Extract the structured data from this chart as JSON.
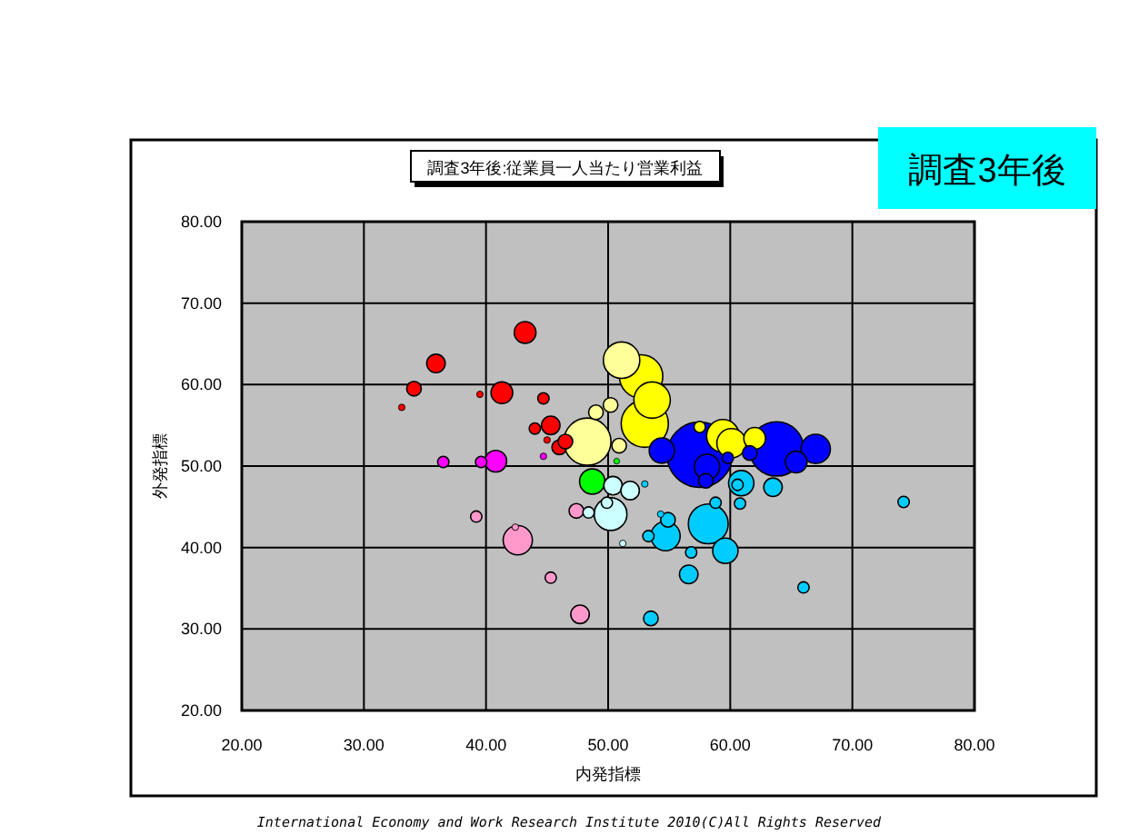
{
  "chart_data": {
    "type": "bubble",
    "title": "調査3年後:従業員一人当たり営業利益",
    "xlabel": "内発指標",
    "ylabel": "外発指標",
    "annotations": [
      "調査3年後",
      "International Economy and Work Research Institute 2010(C)All Rights Reserved"
    ],
    "xlim": [
      20,
      80
    ],
    "ylim": [
      20,
      80
    ],
    "xticks": [
      {
        "value": 20,
        "label": "20.00"
      },
      {
        "value": 30,
        "label": "30.00"
      },
      {
        "value": 40,
        "label": "40.00"
      },
      {
        "value": 50,
        "label": "50.00"
      },
      {
        "value": 60,
        "label": "60.00"
      },
      {
        "value": 70,
        "label": "70.00"
      },
      {
        "value": 80,
        "label": "80.00"
      }
    ],
    "yticks": [
      {
        "value": 20,
        "label": "20.00"
      },
      {
        "value": 30,
        "label": "30.00"
      },
      {
        "value": 40,
        "label": "40.00"
      },
      {
        "value": 50,
        "label": "50.00"
      },
      {
        "value": 60,
        "label": "60.00"
      },
      {
        "value": 70,
        "label": "70.00"
      },
      {
        "value": 80,
        "label": "80.00"
      }
    ],
    "grid": true,
    "series": [
      {
        "color": "#ff0000",
        "x": [
          43.2,
          35.9,
          34.1,
          33.1,
          41.3,
          44.7,
          45.3,
          44.0,
          46.0,
          46.5,
          45.0,
          39.5
        ],
        "values": [
          66.4,
          62.6,
          59.5,
          57.2,
          59.0,
          58.3,
          55.0,
          54.6,
          52.3,
          53.0,
          53.2,
          58.8
        ],
        "sizes": [
          0.11,
          0.08,
          0.05,
          0.01,
          0.11,
          0.03,
          0.08,
          0.03,
          0.05,
          0.05,
          0.01,
          0.01
        ]
      },
      {
        "color": "#ff00ff",
        "x": [
          40.8,
          36.5,
          39.6,
          44.7
        ],
        "values": [
          50.6,
          50.5,
          50.5,
          51.2
        ],
        "sizes": [
          0.11,
          0.03,
          0.03,
          0.01
        ]
      },
      {
        "color": "#ff99cc",
        "x": [
          39.2,
          42.6,
          42.4,
          45.3,
          47.7,
          47.4
        ],
        "values": [
          43.8,
          40.9,
          42.5,
          36.3,
          31.8,
          44.5
        ],
        "sizes": [
          0.03,
          0.2,
          0.01,
          0.03,
          0.08,
          0.05
        ]
      },
      {
        "color": "#00ff00",
        "x": [
          48.7,
          50.7
        ],
        "values": [
          48.1,
          50.6
        ],
        "sizes": [
          0.15,
          0.003
        ]
      },
      {
        "color": "#ffff99",
        "x": [
          51.1,
          48.3,
          50.2,
          50.9,
          49.0
        ],
        "values": [
          63.0,
          53.0,
          57.5,
          52.5,
          56.6
        ],
        "sizes": [
          0.31,
          0.52,
          0.05,
          0.05,
          0.05
        ]
      },
      {
        "color": "#ffff00",
        "x": [
          52.7,
          53.6,
          53.0,
          59.4,
          62.0,
          60.1,
          57.5
        ],
        "values": [
          61.0,
          58.1,
          55.2,
          53.7,
          53.4,
          52.8,
          54.8
        ],
        "sizes": [
          0.44,
          0.31,
          0.52,
          0.25,
          0.11,
          0.2,
          0.03
        ]
      },
      {
        "color": "#00ccff",
        "x": [
          58.2,
          59.6,
          54.7,
          53.3,
          54.9,
          54.3,
          56.6,
          56.8,
          58.8,
          60.6,
          53.0,
          53.5,
          60.9,
          63.5,
          60.8,
          74.2,
          66.0
        ],
        "values": [
          42.9,
          39.6,
          41.4,
          41.4,
          43.4,
          44.1,
          36.7,
          39.4,
          45.5,
          47.7,
          47.8,
          31.3,
          47.9,
          47.4,
          45.4,
          45.6,
          35.1
        ],
        "sizes": [
          0.37,
          0.15,
          0.2,
          0.03,
          0.05,
          0.01,
          0.08,
          0.03,
          0.03,
          0.03,
          0.01,
          0.05,
          0.15,
          0.08,
          0.03,
          0.03,
          0.03
        ]
      },
      {
        "color": "#ccffff",
        "x": [
          50.2,
          50.4,
          51.8,
          49.9,
          48.4,
          51.2
        ],
        "values": [
          44.1,
          47.6,
          47.0,
          45.5,
          44.3,
          40.5
        ],
        "sizes": [
          0.25,
          0.08,
          0.08,
          0.03,
          0.03,
          0.01
        ]
      },
      {
        "color": "#0000ff",
        "x": [
          57.5,
          54.4,
          58.1,
          58.0,
          59.8,
          63.8,
          67.0,
          65.4,
          61.6
        ],
        "values": [
          51.4,
          51.9,
          49.9,
          48.2,
          51.0,
          52.1,
          52.1,
          50.5,
          51.6
        ],
        "sizes": [
          1,
          0.15,
          0.15,
          0.05,
          0.03,
          0.69,
          0.2,
          0.11,
          0.05
        ]
      }
    ]
  }
}
